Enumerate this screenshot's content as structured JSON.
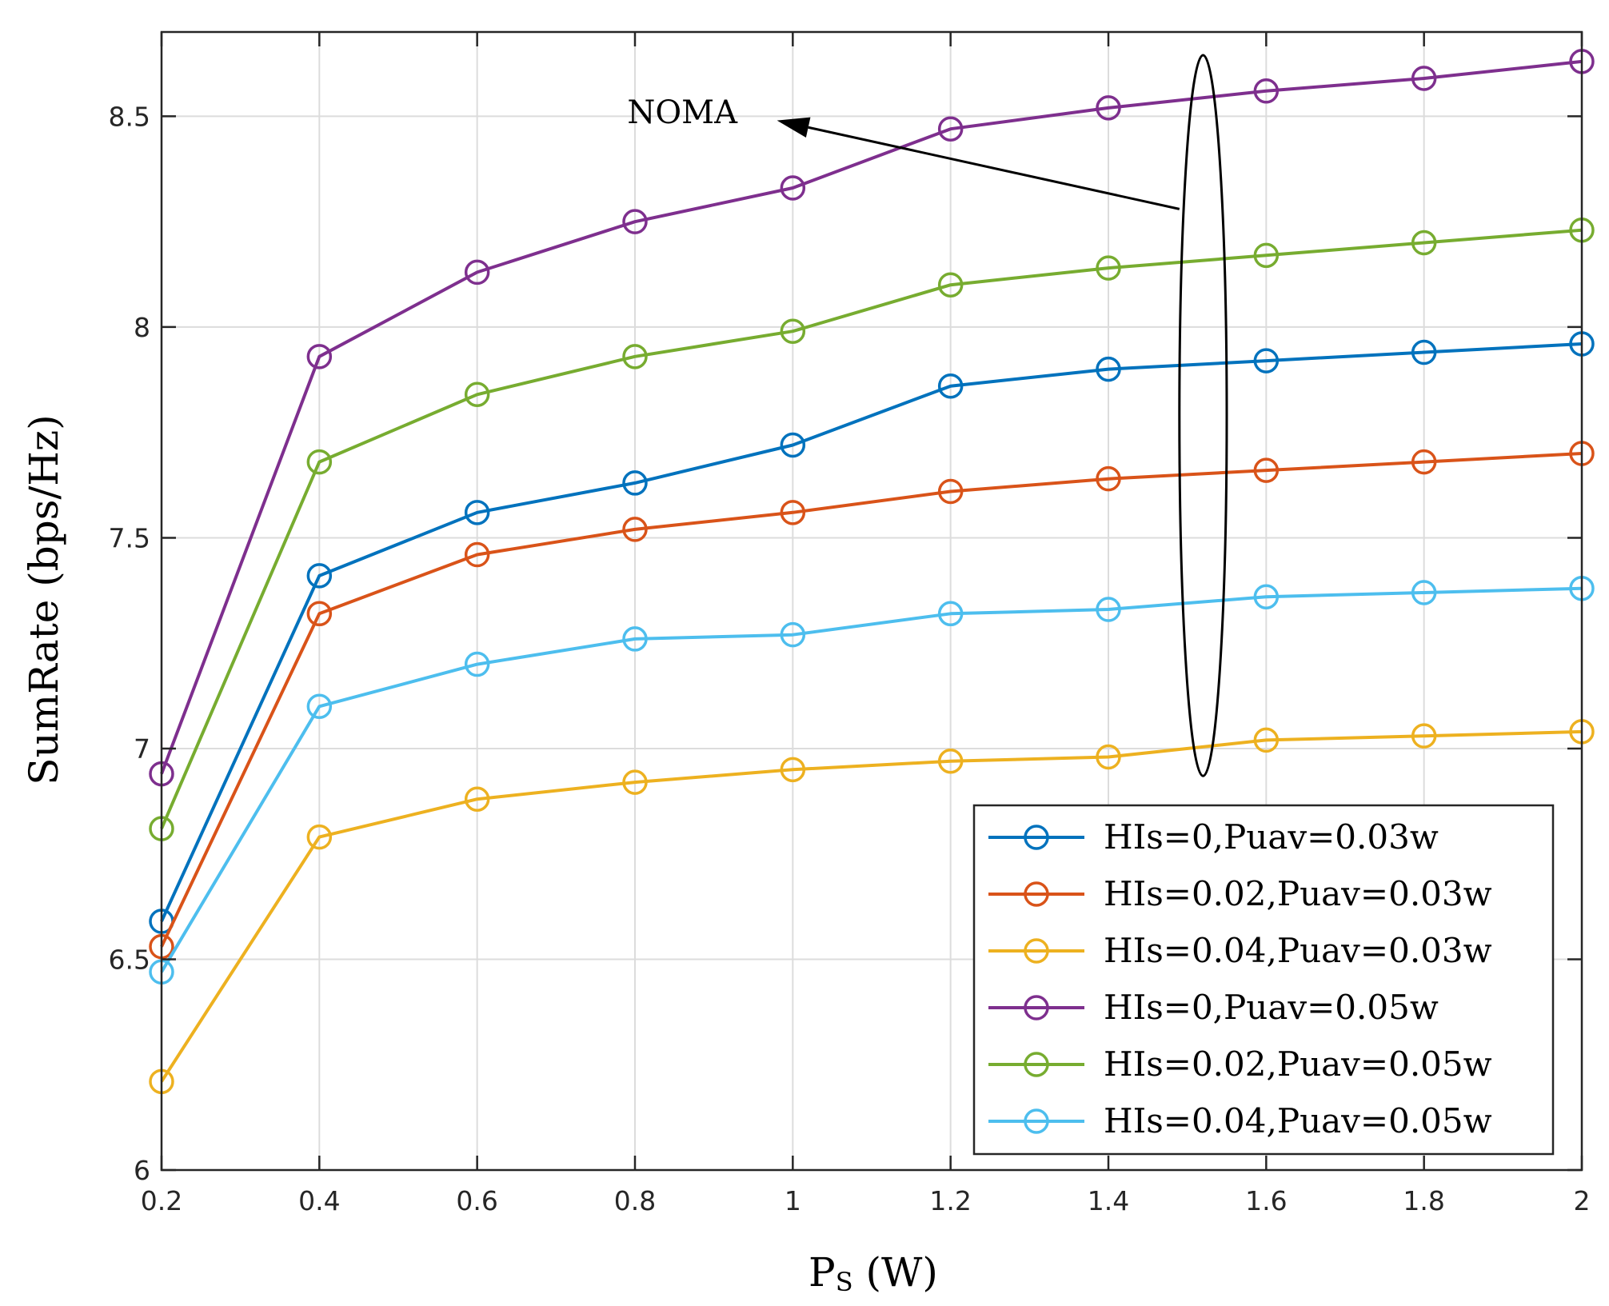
{
  "chart_data": {
    "type": "line",
    "xlabel_main": "P",
    "xlabel_sub": "S",
    "xlabel_unit": " (W)",
    "ylabel": "SumRate (bps/Hz)",
    "xlim": [
      0.2,
      2
    ],
    "ylim": [
      6,
      8.7
    ],
    "xticks": [
      0.2,
      0.4,
      0.6,
      0.8,
      1,
      1.2,
      1.4,
      1.6,
      1.8,
      2
    ],
    "yticks": [
      6,
      6.5,
      7,
      7.5,
      8,
      8.5
    ],
    "xtick_labels": [
      "0.2",
      "0.4",
      "0.6",
      "0.8",
      "1",
      "1.2",
      "1.4",
      "1.6",
      "1.8",
      "2"
    ],
    "ytick_labels": [
      "6",
      "6.5",
      "7",
      "7.5",
      "8",
      "8.5"
    ],
    "grid": true,
    "legend_position": "bottom-right",
    "x": [
      0.2,
      0.4,
      0.6,
      0.8,
      1.0,
      1.2,
      1.4,
      1.6,
      1.8,
      2.0
    ],
    "series": [
      {
        "name": "HIs=0,Puav=0.03w",
        "color": "#0072BD",
        "values": [
          6.59,
          7.41,
          7.56,
          7.63,
          7.72,
          7.86,
          7.9,
          7.92,
          7.94,
          7.96
        ]
      },
      {
        "name": "HIs=0.02,Puav=0.03w",
        "color": "#D95319",
        "values": [
          6.53,
          7.32,
          7.46,
          7.52,
          7.56,
          7.61,
          7.64,
          7.66,
          7.68,
          7.7
        ]
      },
      {
        "name": "HIs=0.04,Puav=0.03w",
        "color": "#EDB120",
        "values": [
          6.21,
          6.79,
          6.88,
          6.92,
          6.95,
          6.97,
          6.98,
          7.02,
          7.03,
          7.04
        ]
      },
      {
        "name": "HIs=0,Puav=0.05w",
        "color": "#7E2F8E",
        "values": [
          6.94,
          7.93,
          8.13,
          8.25,
          8.33,
          8.47,
          8.52,
          8.56,
          8.59,
          8.63
        ]
      },
      {
        "name": "HIs=0.02,Puav=0.05w",
        "color": "#77AC30",
        "values": [
          6.81,
          7.68,
          7.84,
          7.93,
          7.99,
          8.1,
          8.14,
          8.17,
          8.2,
          8.23
        ]
      },
      {
        "name": "HIs=0.04,Puav=0.05w",
        "color": "#4DBEEE",
        "values": [
          6.47,
          7.1,
          7.2,
          7.26,
          7.27,
          7.32,
          7.33,
          7.36,
          7.37,
          7.38
        ]
      }
    ],
    "annotation": {
      "text": "NOMA",
      "ellipse_center": [
        1.52,
        7.79
      ],
      "ellipse_radius_x": 0.03,
      "ellipse_radius_y": 0.855,
      "arrow_from": [
        1.49,
        8.28
      ],
      "arrow_to": [
        0.98,
        8.49
      ],
      "text_anchor_point": [
        0.86,
        8.51
      ]
    }
  }
}
